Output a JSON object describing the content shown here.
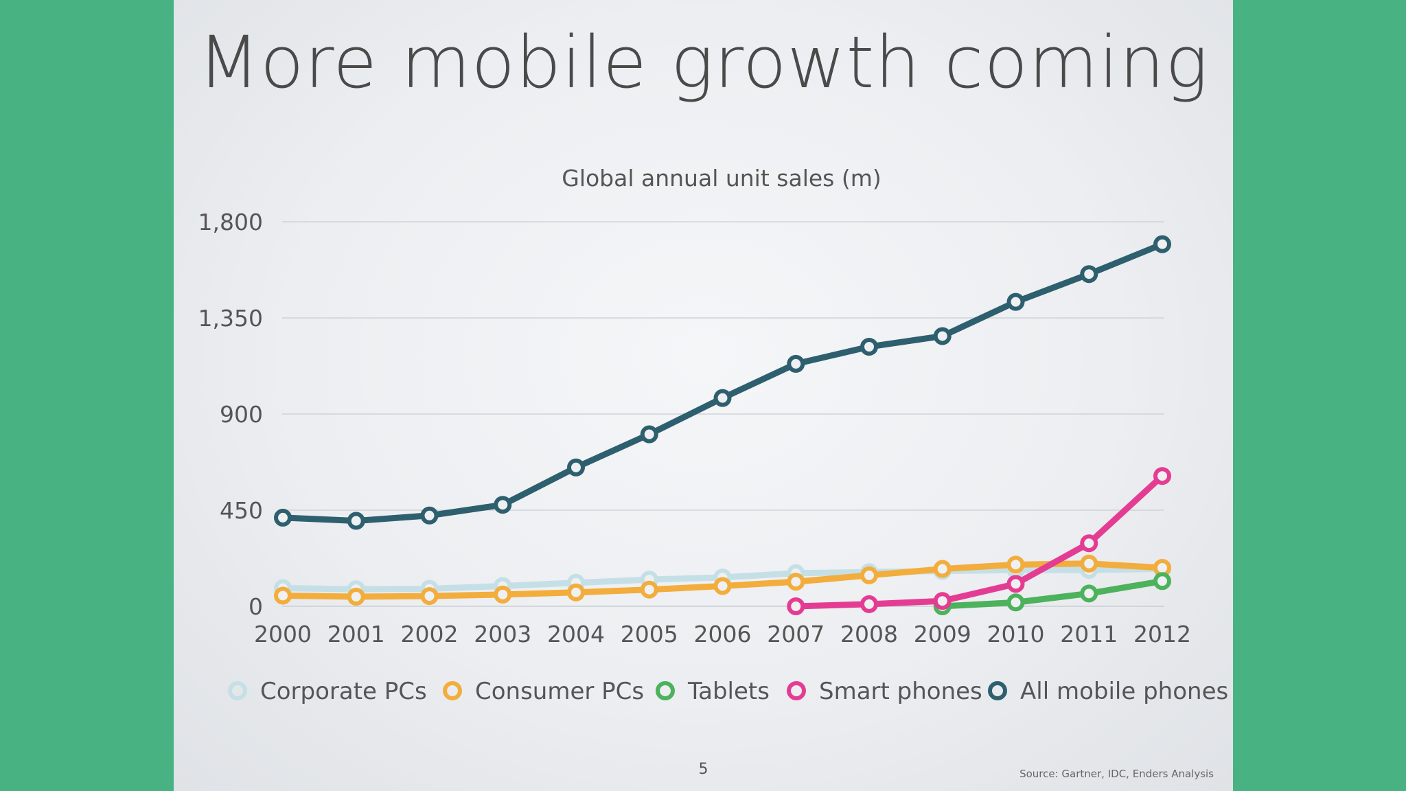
{
  "slide": {
    "title": "More mobile growth coming",
    "page_number": "5",
    "source": "Source: Gartner, IDC, Enders Analysis"
  },
  "chart_data": {
    "type": "line",
    "title": "Global annual unit sales (m)",
    "xlabel": "",
    "ylabel": "",
    "x": [
      "2000",
      "2001",
      "2002",
      "2003",
      "2004",
      "2005",
      "2006",
      "2007",
      "2008",
      "2009",
      "2010",
      "2011",
      "2012"
    ],
    "ylim": [
      0,
      1800
    ],
    "yticks": [
      0,
      450,
      900,
      1350,
      1800
    ],
    "ytick_labels": [
      "0",
      "450",
      "900",
      "1,350",
      "1,800"
    ],
    "grid": true,
    "legend": "bottom",
    "series": [
      {
        "name": "Corporate PCs",
        "color": "#c5dfe6",
        "values": [
          85,
          80,
          82,
          95,
          110,
          125,
          135,
          155,
          160,
          165,
          170,
          170,
          175
        ]
      },
      {
        "name": "Consumer PCs",
        "color": "#f2ad3c",
        "values": [
          50,
          45,
          48,
          55,
          65,
          78,
          95,
          115,
          145,
          175,
          195,
          200,
          180
        ]
      },
      {
        "name": "Tablets",
        "color": "#4cb25c",
        "values": [
          null,
          null,
          null,
          null,
          null,
          null,
          null,
          null,
          null,
          0,
          18,
          60,
          118
        ]
      },
      {
        "name": "Smart phones",
        "color": "#e53c93",
        "values": [
          null,
          null,
          null,
          null,
          null,
          null,
          null,
          0,
          10,
          25,
          105,
          295,
          610
        ]
      },
      {
        "name": "All mobile phones",
        "color": "#2e5f6e",
        "values": [
          415,
          400,
          425,
          475,
          650,
          805,
          975,
          1135,
          1215,
          1265,
          1425,
          1555,
          1695
        ]
      }
    ]
  }
}
